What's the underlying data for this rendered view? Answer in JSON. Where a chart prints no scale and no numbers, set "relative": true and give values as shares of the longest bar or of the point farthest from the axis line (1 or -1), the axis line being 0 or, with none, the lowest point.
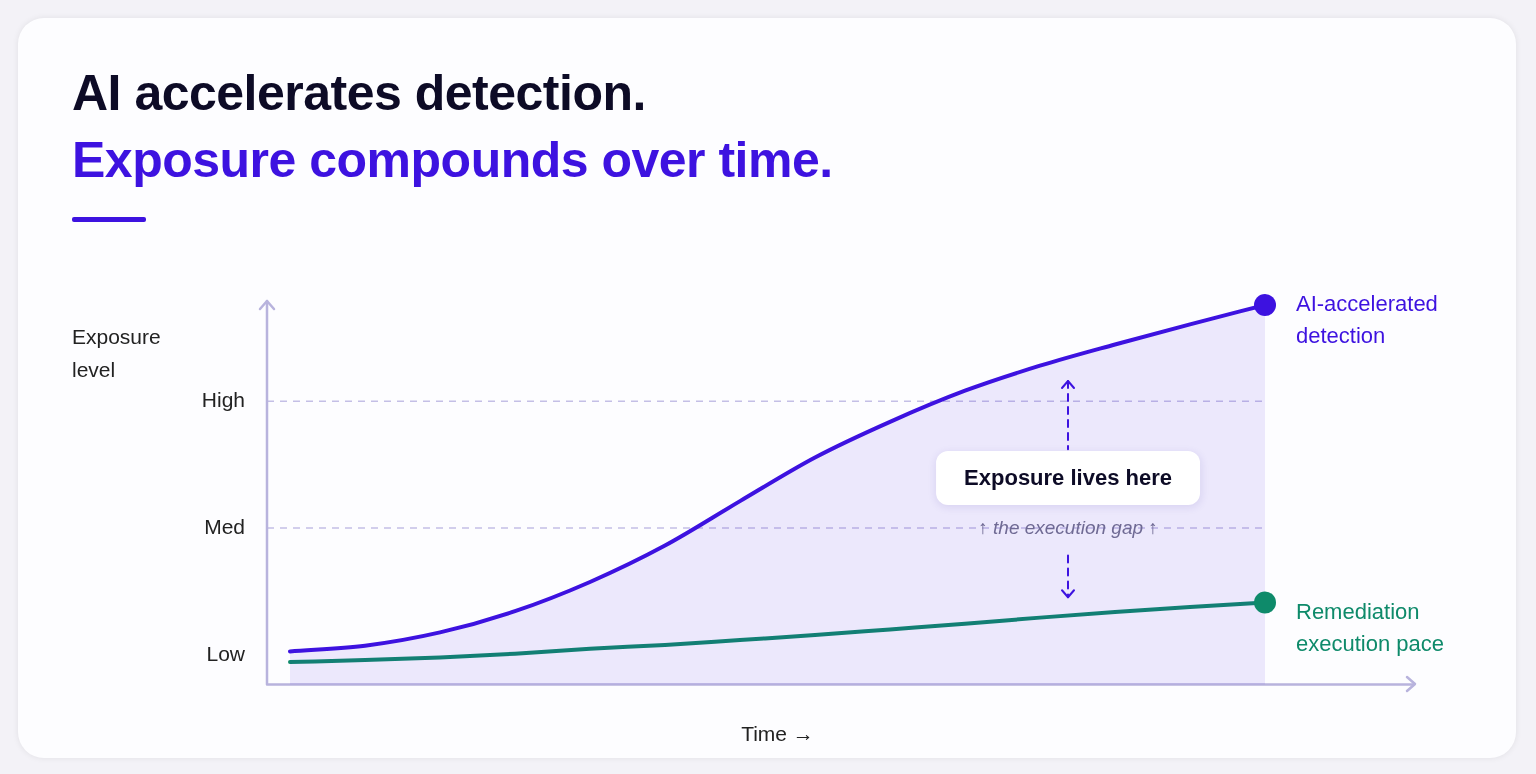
{
  "chart_data": {
    "type": "line",
    "title": "AI accelerates detection.",
    "subtitle": "Exposure compounds over time.",
    "xlabel": "Time →",
    "categories": [
      null,
      null,
      null,
      null,
      null,
      null,
      null,
      null,
      null,
      null,
      null,
      null,
      null,
      null
    ],
    "relative": true,
    "series": [
      {
        "name": "AI-accelerated detection",
        "type": "area",
        "color": "#3d12e0",
        "values": [
          0.087,
          0.102,
          0.137,
          0.193,
          0.27,
          0.366,
          0.483,
          0.598,
          0.692,
          0.774,
          0.84,
          0.896,
          0.949,
          1
        ]
      },
      {
        "name": "Remediation execution pace",
        "color": "#0e8a6a",
        "values": [
          0.059,
          0.064,
          0.071,
          0.081,
          0.094,
          0.104,
          0.117,
          0.13,
          0.145,
          0.16,
          0.176,
          0.191,
          0.204,
          0.216
        ]
      }
    ],
    "grid": false,
    "legend": false,
    "ref_lines": [
      {
        "axis": "y",
        "value": 0.746,
        "label": "High",
        "color": "#c4bfe6",
        "line_style": "dashed"
      },
      {
        "axis": "y",
        "value": 0.412,
        "label": "Med",
        "color": "#c4bfe6",
        "line_style": "dashed"
      }
    ],
    "annotations": [
      "Exposure level",
      "Exposure lives here",
      "↑ the execution gap ↑",
      "Low"
    ]
  }
}
